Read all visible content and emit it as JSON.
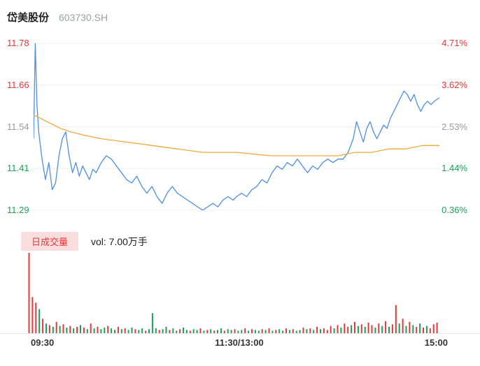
{
  "header": {
    "stock_name": "岱美股份",
    "stock_code": "603730.SH"
  },
  "colors": {
    "up": "#e5383b",
    "down": "#1ca05a",
    "neutral": "#9b9b9b",
    "price_line": "#4e8fe0",
    "avg_line": "#f0a83a",
    "grid": "#ededed",
    "badge_bg": "#fadede",
    "text_primary": "#222222",
    "text_secondary": "#9aa0a6"
  },
  "volume_panel": {
    "legend_label": "日成交量",
    "volume_text": "vol: 7.00万手"
  },
  "chart_data": {
    "type": "line",
    "title": "岱美股份 603730.SH 分时走势",
    "x_ticks": [
      "09:30",
      "11:30/13:00",
      "15:00"
    ],
    "x_range_minutes": [
      0,
      240
    ],
    "y_range": [
      11.29,
      11.78
    ],
    "grid": true,
    "y_axis_left": [
      {
        "text": "11.78",
        "tone": "up"
      },
      {
        "text": "11.66",
        "tone": "up"
      },
      {
        "text": "11.54",
        "tone": "mid"
      },
      {
        "text": "11.41",
        "tone": "down"
      },
      {
        "text": "11.29",
        "tone": "down"
      }
    ],
    "y_axis_right": [
      {
        "text": "4.71%",
        "tone": "up"
      },
      {
        "text": "3.62%",
        "tone": "up"
      },
      {
        "text": "2.53%",
        "tone": "mid"
      },
      {
        "text": "1.44%",
        "tone": "down"
      },
      {
        "text": "0.36%",
        "tone": "down"
      }
    ],
    "series": [
      {
        "name": "price",
        "color_key": "price_line",
        "points": [
          [
            0,
            11.5
          ],
          [
            1,
            11.78
          ],
          [
            2,
            11.6
          ],
          [
            3,
            11.52
          ],
          [
            5,
            11.44
          ],
          [
            7,
            11.38
          ],
          [
            9,
            11.43
          ],
          [
            11,
            11.35
          ],
          [
            13,
            11.37
          ],
          [
            15,
            11.45
          ],
          [
            17,
            11.5
          ],
          [
            19,
            11.52
          ],
          [
            21,
            11.45
          ],
          [
            23,
            11.4
          ],
          [
            25,
            11.43
          ],
          [
            27,
            11.39
          ],
          [
            29,
            11.42
          ],
          [
            31,
            11.4
          ],
          [
            33,
            11.38
          ],
          [
            35,
            11.41
          ],
          [
            37,
            11.4
          ],
          [
            40,
            11.43
          ],
          [
            43,
            11.45
          ],
          [
            46,
            11.44
          ],
          [
            49,
            11.42
          ],
          [
            52,
            11.4
          ],
          [
            55,
            11.38
          ],
          [
            58,
            11.37
          ],
          [
            61,
            11.39
          ],
          [
            64,
            11.36
          ],
          [
            67,
            11.34
          ],
          [
            70,
            11.36
          ],
          [
            73,
            11.33
          ],
          [
            76,
            11.31
          ],
          [
            79,
            11.34
          ],
          [
            82,
            11.36
          ],
          [
            85,
            11.34
          ],
          [
            88,
            11.33
          ],
          [
            91,
            11.32
          ],
          [
            94,
            11.31
          ],
          [
            97,
            11.3
          ],
          [
            100,
            11.29
          ],
          [
            103,
            11.3
          ],
          [
            106,
            11.31
          ],
          [
            109,
            11.3
          ],
          [
            112,
            11.32
          ],
          [
            115,
            11.33
          ],
          [
            118,
            11.32
          ],
          [
            120,
            11.33
          ],
          [
            123,
            11.34
          ],
          [
            126,
            11.33
          ],
          [
            129,
            11.35
          ],
          [
            132,
            11.36
          ],
          [
            135,
            11.38
          ],
          [
            138,
            11.37
          ],
          [
            141,
            11.4
          ],
          [
            144,
            11.42
          ],
          [
            147,
            11.41
          ],
          [
            150,
            11.43
          ],
          [
            153,
            11.42
          ],
          [
            156,
            11.44
          ],
          [
            159,
            11.42
          ],
          [
            162,
            11.4
          ],
          [
            165,
            11.42
          ],
          [
            168,
            11.41
          ],
          [
            171,
            11.43
          ],
          [
            174,
            11.44
          ],
          [
            177,
            11.43
          ],
          [
            180,
            11.44
          ],
          [
            183,
            11.44
          ],
          [
            186,
            11.46
          ],
          [
            189,
            11.5
          ],
          [
            191,
            11.55
          ],
          [
            193,
            11.52
          ],
          [
            195,
            11.49
          ],
          [
            197,
            11.53
          ],
          [
            199,
            11.55
          ],
          [
            201,
            11.52
          ],
          [
            203,
            11.5
          ],
          [
            205,
            11.52
          ],
          [
            207,
            11.54
          ],
          [
            209,
            11.53
          ],
          [
            211,
            11.56
          ],
          [
            213,
            11.58
          ],
          [
            215,
            11.6
          ],
          [
            217,
            11.62
          ],
          [
            219,
            11.64
          ],
          [
            221,
            11.63
          ],
          [
            223,
            11.61
          ],
          [
            225,
            11.63
          ],
          [
            227,
            11.6
          ],
          [
            229,
            11.58
          ],
          [
            231,
            11.6
          ],
          [
            233,
            11.61
          ],
          [
            235,
            11.6
          ],
          [
            237,
            11.61
          ],
          [
            240,
            11.62
          ]
        ]
      },
      {
        "name": "avg_price",
        "color_key": "avg_line",
        "points": [
          [
            0,
            11.57
          ],
          [
            4,
            11.56
          ],
          [
            8,
            11.55
          ],
          [
            12,
            11.54
          ],
          [
            16,
            11.53
          ],
          [
            22,
            11.52
          ],
          [
            30,
            11.51
          ],
          [
            40,
            11.5
          ],
          [
            55,
            11.49
          ],
          [
            70,
            11.48
          ],
          [
            85,
            11.47
          ],
          [
            100,
            11.46
          ],
          [
            120,
            11.46
          ],
          [
            140,
            11.45
          ],
          [
            160,
            11.45
          ],
          [
            180,
            11.45
          ],
          [
            190,
            11.46
          ],
          [
            200,
            11.46
          ],
          [
            210,
            11.47
          ],
          [
            220,
            11.47
          ],
          [
            230,
            11.48
          ],
          [
            240,
            11.48
          ]
        ]
      }
    ],
    "volume": {
      "max_scale": 100,
      "bars": [
        [
          100,
          "r"
        ],
        [
          45,
          "r"
        ],
        [
          38,
          "r"
        ],
        [
          30,
          "g"
        ],
        [
          18,
          "r"
        ],
        [
          12,
          "g"
        ],
        [
          10,
          "r"
        ],
        [
          8,
          "g"
        ],
        [
          14,
          "r"
        ],
        [
          9,
          "g"
        ],
        [
          11,
          "r"
        ],
        [
          7,
          "g"
        ],
        [
          9,
          "r"
        ],
        [
          6,
          "g"
        ],
        [
          8,
          "r"
        ],
        [
          10,
          "g"
        ],
        [
          7,
          "r"
        ],
        [
          5,
          "g"
        ],
        [
          12,
          "r"
        ],
        [
          6,
          "g"
        ],
        [
          8,
          "r"
        ],
        [
          5,
          "g"
        ],
        [
          7,
          "g"
        ],
        [
          9,
          "r"
        ],
        [
          6,
          "g"
        ],
        [
          4,
          "g"
        ],
        [
          8,
          "r"
        ],
        [
          5,
          "g"
        ],
        [
          6,
          "r"
        ],
        [
          4,
          "g"
        ],
        [
          7,
          "g"
        ],
        [
          5,
          "r"
        ],
        [
          4,
          "g"
        ],
        [
          6,
          "g"
        ],
        [
          3,
          "r"
        ],
        [
          5,
          "g"
        ],
        [
          25,
          "g"
        ],
        [
          6,
          "g"
        ],
        [
          4,
          "r"
        ],
        [
          5,
          "g"
        ],
        [
          8,
          "g"
        ],
        [
          4,
          "r"
        ],
        [
          6,
          "g"
        ],
        [
          3,
          "g"
        ],
        [
          5,
          "r"
        ],
        [
          7,
          "g"
        ],
        [
          4,
          "g"
        ],
        [
          3,
          "r"
        ],
        [
          5,
          "g"
        ],
        [
          4,
          "g"
        ],
        [
          6,
          "r"
        ],
        [
          3,
          "g"
        ],
        [
          4,
          "r"
        ],
        [
          5,
          "g"
        ],
        [
          3,
          "r"
        ],
        [
          4,
          "g"
        ],
        [
          6,
          "g"
        ],
        [
          3,
          "r"
        ],
        [
          5,
          "g"
        ],
        [
          4,
          "g"
        ],
        [
          5,
          "r"
        ],
        [
          3,
          "g"
        ],
        [
          4,
          "g"
        ],
        [
          6,
          "r"
        ],
        [
          3,
          "g"
        ],
        [
          5,
          "r"
        ],
        [
          4,
          "g"
        ],
        [
          3,
          "g"
        ],
        [
          5,
          "r"
        ],
        [
          4,
          "g"
        ],
        [
          6,
          "r"
        ],
        [
          3,
          "g"
        ],
        [
          4,
          "r"
        ],
        [
          5,
          "g"
        ],
        [
          3,
          "g"
        ],
        [
          6,
          "r"
        ],
        [
          4,
          "g"
        ],
        [
          5,
          "r"
        ],
        [
          3,
          "g"
        ],
        [
          4,
          "g"
        ],
        [
          7,
          "r"
        ],
        [
          5,
          "g"
        ],
        [
          6,
          "r"
        ],
        [
          4,
          "g"
        ],
        [
          8,
          "r"
        ],
        [
          5,
          "g"
        ],
        [
          6,
          "r"
        ],
        [
          4,
          "r"
        ],
        [
          9,
          "r"
        ],
        [
          6,
          "g"
        ],
        [
          10,
          "r"
        ],
        [
          7,
          "g"
        ],
        [
          12,
          "r"
        ],
        [
          8,
          "r"
        ],
        [
          10,
          "g"
        ],
        [
          14,
          "r"
        ],
        [
          9,
          "g"
        ],
        [
          11,
          "r"
        ],
        [
          8,
          "g"
        ],
        [
          13,
          "r"
        ],
        [
          10,
          "r"
        ],
        [
          7,
          "g"
        ],
        [
          12,
          "r"
        ],
        [
          9,
          "g"
        ],
        [
          15,
          "r"
        ],
        [
          8,
          "g"
        ],
        [
          11,
          "r"
        ],
        [
          35,
          "r"
        ],
        [
          12,
          "g"
        ],
        [
          18,
          "r"
        ],
        [
          9,
          "g"
        ],
        [
          14,
          "r"
        ],
        [
          10,
          "g"
        ],
        [
          8,
          "r"
        ],
        [
          12,
          "g"
        ],
        [
          7,
          "r"
        ],
        [
          9,
          "g"
        ],
        [
          6,
          "r"
        ],
        [
          11,
          "r"
        ],
        [
          13,
          "r"
        ]
      ]
    }
  }
}
